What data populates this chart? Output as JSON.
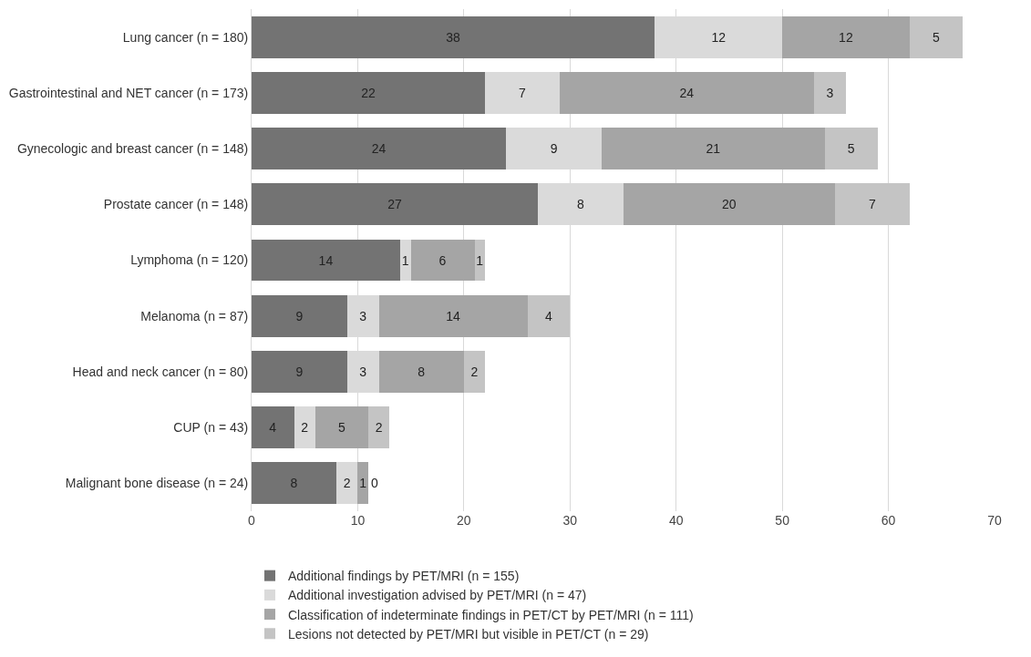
{
  "chart_data": {
    "type": "bar",
    "orientation": "horizontal",
    "stacked": true,
    "data_labels": true,
    "grid": "x",
    "legend": "bottom",
    "categories": [
      "Lung cancer (n = 180)",
      "Gastrointestinal and NET cancer (n = 173)",
      "Gynecologic and breast cancer (n = 148)",
      "Prostate cancer (n = 148)",
      "Lymphoma (n = 120)",
      "Melanoma (n = 87)",
      "Head and neck cancer (n = 80)",
      "CUP (n = 43)",
      "Malignant bone disease (n = 24)"
    ],
    "series": [
      {
        "name": "Additional findings by PET/MRI (n = 155)",
        "color": "#737373",
        "values": [
          38,
          22,
          24,
          27,
          14,
          9,
          9,
          4,
          8
        ]
      },
      {
        "name": "Additional investigation advised by PET/MRI (n = 47)",
        "color": "#dadada",
        "values": [
          12,
          7,
          9,
          8,
          1,
          3,
          3,
          2,
          2
        ]
      },
      {
        "name": "Classification of indeterminate findings in PET/CT by PET/MRI (n = 111)",
        "color": "#a5a5a5",
        "values": [
          12,
          24,
          21,
          20,
          6,
          14,
          8,
          5,
          1
        ]
      },
      {
        "name": "Lesions not detected by PET/MRI but visible in PET/CT (n = 29)",
        "color": "#c4c4c4",
        "values": [
          5,
          3,
          5,
          7,
          1,
          4,
          2,
          2,
          0
        ]
      }
    ],
    "xlim": [
      0,
      70
    ],
    "xticks": [
      0,
      10,
      20,
      30,
      40,
      50,
      60,
      70
    ]
  }
}
